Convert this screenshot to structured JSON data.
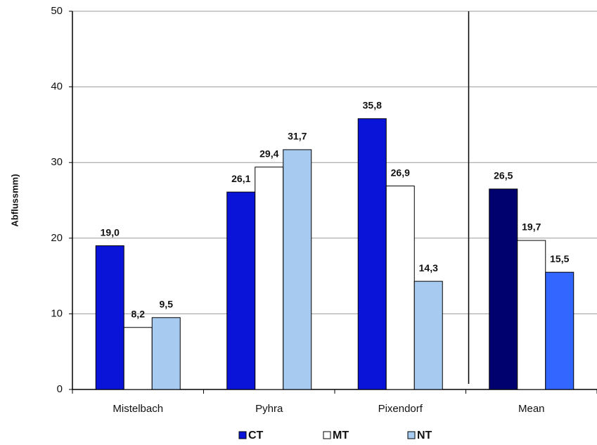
{
  "chart_data": {
    "type": "bar",
    "y_label": "Abflussmm)",
    "categories": [
      "Mistelbach",
      "Pyhra",
      "Pixendorf",
      "Mean"
    ],
    "series": [
      {
        "name": "CT",
        "color": "#0a14d9",
        "colors": [
          "#0a14d9",
          "#0a14d9",
          "#0a14d9",
          "#00006e"
        ],
        "values": [
          19.0,
          26.1,
          35.8,
          26.5
        ],
        "value_labels": [
          "19,0",
          "26,1",
          "35,8",
          "26,5"
        ]
      },
      {
        "name": "MT",
        "color": "#ffffff",
        "colors": [
          "#ffffff",
          "#ffffff",
          "#ffffff",
          "#ffffff"
        ],
        "values": [
          8.2,
          29.4,
          26.9,
          19.7
        ],
        "value_labels": [
          "8,2",
          "29,4",
          "26,9",
          "19,7"
        ]
      },
      {
        "name": "NT",
        "color": "#a6caf0",
        "colors": [
          "#a6caf0",
          "#a6caf0",
          "#a6caf0",
          "#3366ff"
        ],
        "values": [
          9.5,
          31.7,
          14.3,
          15.5
        ],
        "value_labels": [
          "9,5",
          "31,7",
          "14,3",
          "15,5"
        ]
      }
    ],
    "ylim": [
      0,
      50
    ],
    "yticks": [
      0,
      10,
      20,
      30,
      40,
      50
    ],
    "grid": true
  }
}
